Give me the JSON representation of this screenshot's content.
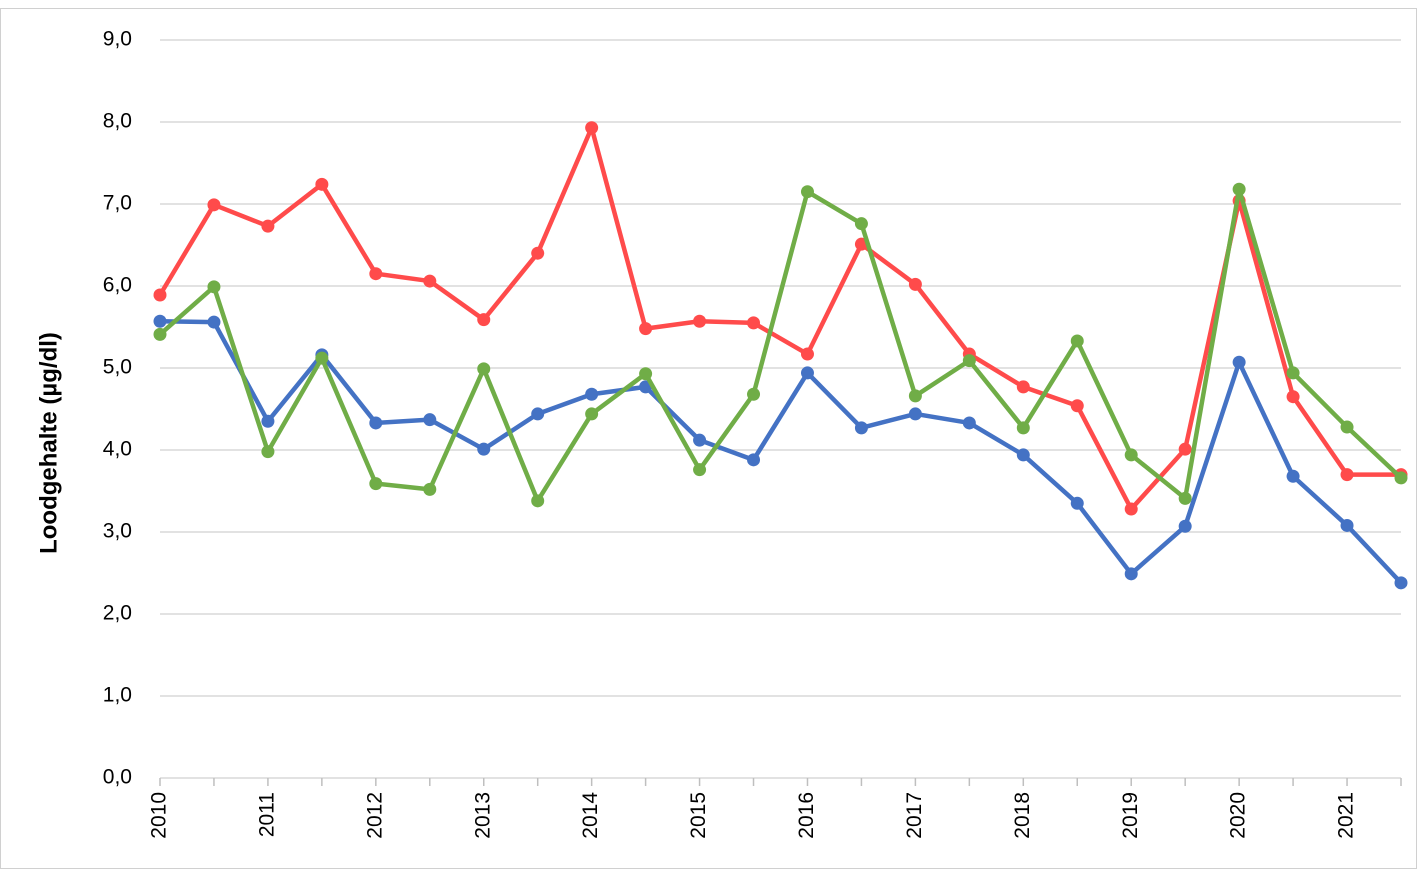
{
  "chart_data": {
    "type": "line",
    "y_label": "Loodgehalte (µg/dl)",
    "categories": [
      "2010",
      null,
      "2011",
      null,
      "2012",
      null,
      "2013",
      null,
      "2014",
      null,
      "2015",
      null,
      "2016",
      null,
      "2017",
      null,
      "2018",
      null,
      "2019",
      null,
      "2020",
      null,
      "2021",
      null
    ],
    "series": [
      {
        "color": "#4472c4",
        "values": [
          5.57,
          5.56,
          4.35,
          5.16,
          4.33,
          4.37,
          4.01,
          4.44,
          4.68,
          4.77,
          4.12,
          3.88,
          4.94,
          4.27,
          4.44,
          4.33,
          3.94,
          3.35,
          2.49,
          3.07,
          5.07,
          3.68,
          3.08,
          2.38
        ]
      },
      {
        "color": "#ff4b4b",
        "values": [
          5.89,
          6.99,
          6.73,
          7.24,
          6.15,
          6.06,
          5.59,
          6.4,
          7.93,
          5.48,
          5.57,
          5.55,
          5.17,
          6.51,
          6.02,
          5.17,
          4.77,
          4.54,
          3.28,
          4.01,
          7.04,
          4.65,
          3.7,
          3.7
        ]
      },
      {
        "color": "#70ad47",
        "values": [
          5.41,
          5.99,
          3.98,
          5.12,
          3.59,
          3.52,
          4.99,
          3.38,
          4.44,
          4.93,
          3.76,
          4.68,
          7.15,
          6.76,
          4.66,
          5.09,
          4.27,
          5.33,
          3.94,
          3.41,
          7.18,
          4.94,
          4.28,
          3.66
        ]
      }
    ],
    "ylim": [
      0,
      9
    ],
    "yticks": [
      {
        "value": 0,
        "label": "0,0"
      },
      {
        "value": 1,
        "label": "1,0"
      },
      {
        "value": 2,
        "label": "2,0"
      },
      {
        "value": 3,
        "label": "3,0"
      },
      {
        "value": 4,
        "label": "4,0"
      },
      {
        "value": 5,
        "label": "5,0"
      },
      {
        "value": 6,
        "label": "6,0"
      },
      {
        "value": 7,
        "label": "7,0"
      },
      {
        "value": 8,
        "label": "8,0"
      },
      {
        "value": 9,
        "label": "9,0"
      }
    ],
    "grid": true
  }
}
